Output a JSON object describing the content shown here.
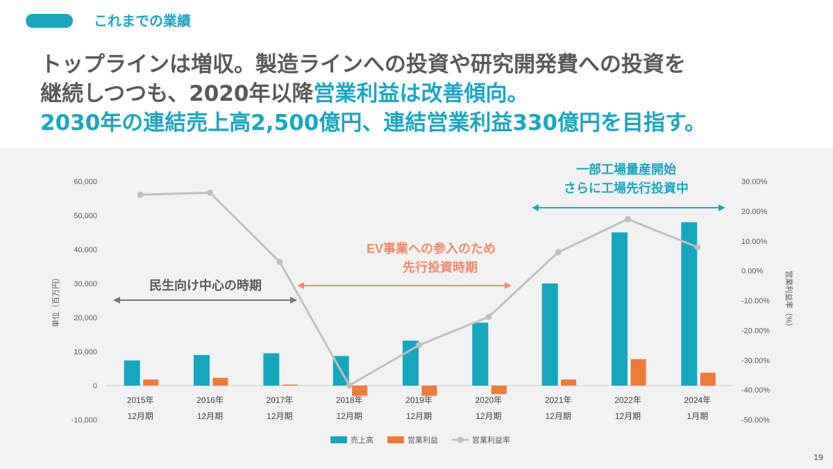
{
  "header": {
    "section_title": "これまでの業績",
    "headline_line1": "トップラインは増収。製造ラインへの投資や研究開発費への投資を",
    "headline_line2_a": "継続しつつも、2020年以降",
    "headline_line2_b": "営業利益は改善傾向。",
    "headline_line3": "2030年の連結売上高2,500億円、連結営業利益330億円を目指す。"
  },
  "colors": {
    "accent": "#1ba6c0",
    "revenue": "#16a7bf",
    "profit": "#ee7b3a",
    "margin": "#c0c0c0",
    "arrow_gray": "#767676",
    "arrow_orange": "#f08a6c",
    "arrow_teal": "#1ba6c0"
  },
  "chart_data": {
    "type": "bar",
    "categories": [
      [
        "2015年",
        "12月期"
      ],
      [
        "2016年",
        "12月期"
      ],
      [
        "2017年",
        "12月期"
      ],
      [
        "2018年",
        "12月期"
      ],
      [
        "2019年",
        "12月期"
      ],
      [
        "2020年",
        "12月期"
      ],
      [
        "2021年",
        "12月期"
      ],
      [
        "2022年",
        "12月期"
      ],
      [
        "2024年",
        "1月期"
      ]
    ],
    "series": [
      {
        "name": "売上高",
        "type": "bar",
        "axis": "left",
        "values": [
          7400,
          9000,
          9500,
          8700,
          13200,
          18500,
          30000,
          45000,
          48000
        ]
      },
      {
        "name": "営業利益",
        "type": "bar",
        "axis": "left",
        "values": [
          1800,
          2300,
          300,
          -3000,
          -3000,
          -2500,
          1800,
          7800,
          3800
        ]
      },
      {
        "name": "営業利益率",
        "type": "line",
        "axis": "right",
        "values": [
          25.5,
          26.2,
          3.0,
          -38.5,
          -25.0,
          -15.5,
          6.2,
          17.3,
          7.9
        ]
      }
    ],
    "ylabel": "単位（百万円）",
    "y2label": "営業利益率（%）",
    "ylim": [
      -10000,
      60000
    ],
    "y2lim": [
      -50,
      30
    ],
    "y_ticks": [
      "-10,000",
      "0",
      "10,000",
      "20,000",
      "30,000",
      "40,000",
      "50,000",
      "60,000"
    ],
    "y2_ticks": [
      "-50.00%",
      "-40.00%",
      "-30.00%",
      "-20.00%",
      "-10.00%",
      "0.00%",
      "10.00%",
      "20.00%",
      "30.00%"
    ],
    "grid": false,
    "legend": "bottom",
    "annotations": [
      {
        "lines": [
          "民生向け中心の時期"
        ],
        "color": "gray"
      },
      {
        "lines": [
          "EV事業への参入のため",
          "先行投資時期"
        ],
        "color": "orange"
      },
      {
        "lines": [
          "一部工場量産開始",
          "さらに工場先行投資中"
        ],
        "color": "teal"
      }
    ]
  },
  "page_number": "19"
}
